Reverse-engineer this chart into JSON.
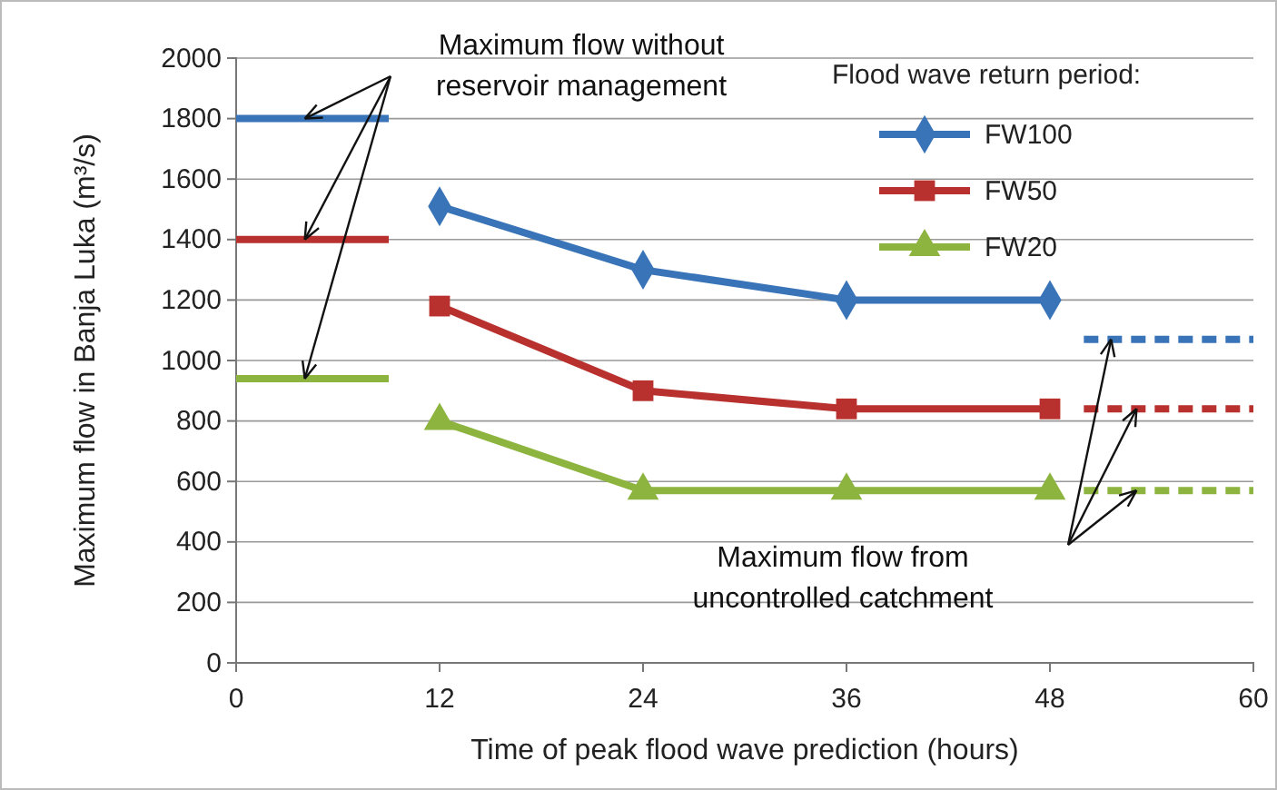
{
  "chart_data": {
    "type": "line",
    "xlabel": "Time of peak flood wave prediction (hours)",
    "ylabel": "Maximum flow in Banja Luka (m³/s)",
    "legend_title": "Flood wave return period:",
    "legend": "top right",
    "grid": "y",
    "xlim": [
      0,
      60
    ],
    "xticks": [
      0,
      12,
      24,
      36,
      48,
      60
    ],
    "ylim": [
      0,
      2000
    ],
    "yticks": [
      0,
      200,
      400,
      600,
      800,
      1000,
      1200,
      1400,
      1600,
      1800,
      2000
    ],
    "series": [
      {
        "name": "FW100",
        "color": "#3a74b8",
        "x": [
          12,
          24,
          36,
          48
        ],
        "values": [
          1510,
          1300,
          1200,
          1200
        ],
        "marker": "diamond",
        "line_style": "solid"
      },
      {
        "name": "FW50",
        "color": "#b8312f",
        "x": [
          12,
          24,
          36,
          48
        ],
        "values": [
          1180,
          900,
          840,
          840
        ],
        "marker": "square",
        "line_style": "solid"
      },
      {
        "name": "FW20",
        "color": "#8db43e",
        "x": [
          12,
          24,
          36,
          48
        ],
        "values": [
          800,
          570,
          570,
          570
        ],
        "marker": "triangle",
        "line_style": "solid"
      },
      {
        "color": "#3a74b8",
        "x": [
          0,
          9
        ],
        "values": [
          1800,
          1800
        ],
        "marker": "none",
        "line_style": "solid"
      },
      {
        "color": "#b8312f",
        "x": [
          0,
          9
        ],
        "values": [
          1400,
          1400
        ],
        "marker": "none",
        "line_style": "solid"
      },
      {
        "color": "#8db43e",
        "x": [
          0,
          9
        ],
        "values": [
          940,
          940
        ],
        "marker": "none",
        "line_style": "solid"
      },
      {
        "color": "#3a74b8",
        "x": [
          50,
          60
        ],
        "values": [
          1070,
          1070
        ],
        "marker": "none",
        "line_style": "dashed"
      },
      {
        "color": "#b8312f",
        "x": [
          50,
          60
        ],
        "values": [
          840,
          840
        ],
        "marker": "none",
        "line_style": "dashed"
      },
      {
        "color": "#8db43e",
        "x": [
          50,
          60
        ],
        "values": [
          570,
          570
        ],
        "marker": "none",
        "line_style": "dashed"
      }
    ],
    "annotations": [
      "Maximum flow without reservoir management",
      "Maximum flow from uncontrolled catchment"
    ]
  }
}
